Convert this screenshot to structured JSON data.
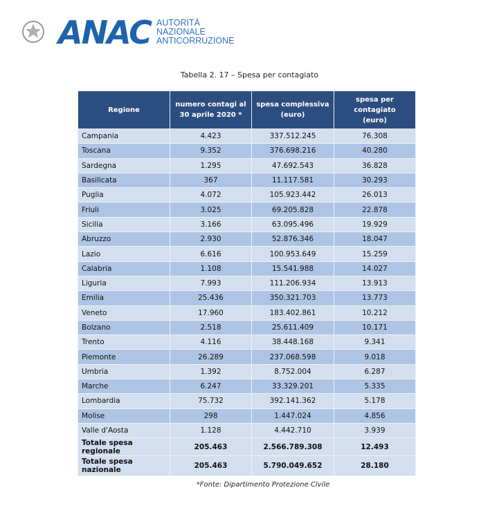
{
  "header": {
    "logo": "ANAC",
    "subtitle": [
      "AUTORITÀ",
      "NAZIONALE",
      "ANTICORRUZIONE"
    ]
  },
  "table": {
    "caption": "Tabella 2. 17 – Spesa per contagiato",
    "columns": [
      [
        "Regione"
      ],
      [
        "numero contagi al",
        "30 aprile 2020 *"
      ],
      [
        "spesa complessiva",
        "(euro)"
      ],
      [
        "spesa per",
        "contagiato",
        "(euro)"
      ]
    ],
    "rows": [
      [
        "Campania",
        "4.423",
        "337.512.245",
        "76.308"
      ],
      [
        "Toscana",
        "9.352",
        "376.698.216",
        "40.280"
      ],
      [
        "Sardegna",
        "1.295",
        "47.692.543",
        "36.828"
      ],
      [
        "Basilicata",
        "367",
        "11.117.581",
        "30.293"
      ],
      [
        "Puglia",
        "4.072",
        "105.923.442",
        "26.013"
      ],
      [
        "Friuli",
        "3.025",
        "69.205.828",
        "22.878"
      ],
      [
        "Sicilia",
        "3.166",
        "63.095.496",
        "19.929"
      ],
      [
        "Abruzzo",
        "2.930",
        "52.876.346",
        "18.047"
      ],
      [
        "Lazio",
        "6.616",
        "100.953.649",
        "15.259"
      ],
      [
        "Calabria",
        "1.108",
        "15.541.988",
        "14.027"
      ],
      [
        "Liguria",
        "7.993",
        "111.206.934",
        "13.913"
      ],
      [
        "Emilia",
        "25.436",
        "350.321.703",
        "13.773"
      ],
      [
        "Veneto",
        "17.960",
        "183.402.861",
        "10.212"
      ],
      [
        "Bolzano",
        "2.518",
        "25.611.409",
        "10.171"
      ],
      [
        "Trento",
        "4.116",
        "38.448.168",
        "9.341"
      ],
      [
        "Piemonte",
        "26.289",
        "237.068.598",
        "9.018"
      ],
      [
        "Umbria",
        "1.392",
        "8.752.004",
        "6.287"
      ],
      [
        "Marche",
        "6.247",
        "33.329.201",
        "5.335"
      ],
      [
        "Lombardia",
        "75.732",
        "392.141.362",
        "5.178"
      ],
      [
        "Molise",
        "298",
        "1.447.024",
        "4.856"
      ],
      [
        "Valle d'Aosta",
        "1.128",
        "4.442.710",
        "3.939"
      ]
    ],
    "totals": [
      [
        "Totale spesa regionale",
        "205.463",
        "2.566.789.308",
        "12.493"
      ],
      [
        "Totale spesa nazionale",
        "205.463",
        "5.790.049.652",
        "28.180"
      ]
    ],
    "footnote": "*Fonte: Dipartimento Protezione Civile"
  }
}
